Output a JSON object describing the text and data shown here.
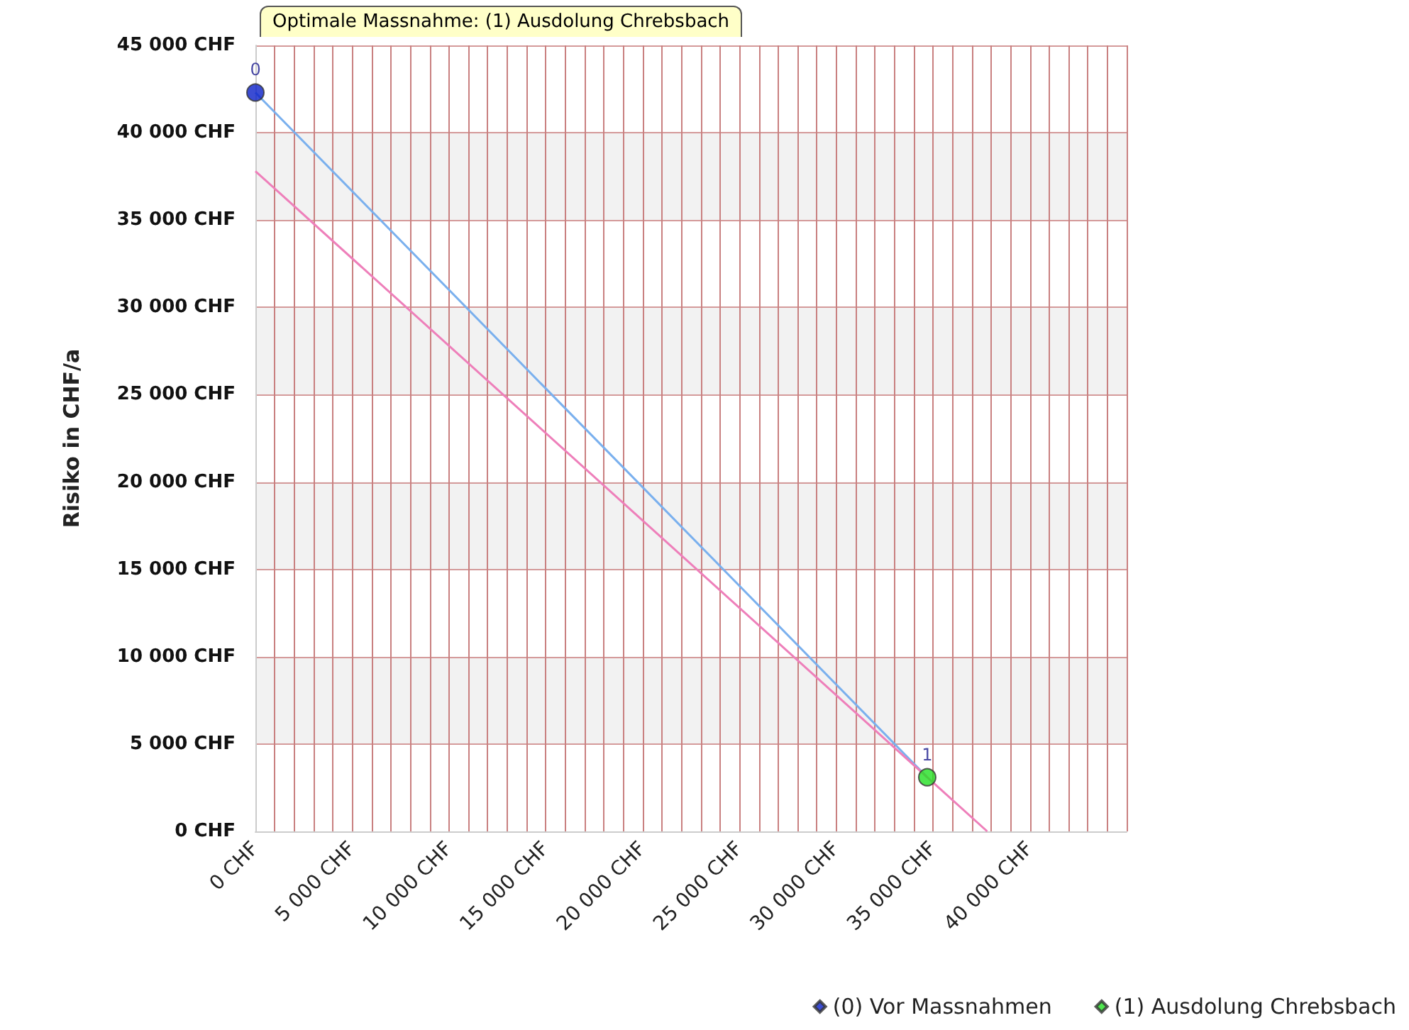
{
  "chart_data": {
    "type": "scatter",
    "ylabel": "Risiko in CHF/a",
    "annotations": [
      "Optimale Massnahme: (1) Ausdolung Chrebsbach",
      {
        "text": "0",
        "x": 0,
        "y": 42300
      },
      {
        "text": "1",
        "x": 34700,
        "y": 3100
      }
    ],
    "series": [
      {
        "type": "line",
        "color": "#7ab0ee",
        "x": [
          0,
          34700
        ],
        "values": [
          42300,
          3100
        ],
        "marker": "none"
      },
      {
        "type": "line",
        "color": "#ee7fba",
        "x": [
          0,
          37800
        ],
        "values": [
          37800,
          0
        ],
        "marker": "none"
      },
      {
        "name": "(0) Vor Massnahmen",
        "color": "#0a1fc8",
        "x": [
          0
        ],
        "values": [
          42300
        ]
      },
      {
        "name": "(1) Ausdolung Chrebsbach",
        "color": "#22e022",
        "x": [
          34700
        ],
        "values": [
          3100
        ]
      }
    ],
    "xlim": [
      0,
      45000
    ],
    "xticks": [
      {
        "value": 0,
        "label": "0 CHF"
      },
      {
        "value": 1000,
        "label": null
      },
      {
        "value": 2000,
        "label": null
      },
      {
        "value": 3000,
        "label": null
      },
      {
        "value": 4000,
        "label": null
      },
      {
        "value": 5000,
        "label": "5 000 CHF"
      },
      {
        "value": 6000,
        "label": null
      },
      {
        "value": 7000,
        "label": null
      },
      {
        "value": 8000,
        "label": null
      },
      {
        "value": 9000,
        "label": null
      },
      {
        "value": 10000,
        "label": "10 000 CHF"
      },
      {
        "value": 11000,
        "label": null
      },
      {
        "value": 12000,
        "label": null
      },
      {
        "value": 13000,
        "label": null
      },
      {
        "value": 14000,
        "label": null
      },
      {
        "value": 15000,
        "label": "15 000 CHF"
      },
      {
        "value": 16000,
        "label": null
      },
      {
        "value": 17000,
        "label": null
      },
      {
        "value": 18000,
        "label": null
      },
      {
        "value": 19000,
        "label": null
      },
      {
        "value": 20000,
        "label": "20 000 CHF"
      },
      {
        "value": 21000,
        "label": null
      },
      {
        "value": 22000,
        "label": null
      },
      {
        "value": 23000,
        "label": null
      },
      {
        "value": 24000,
        "label": null
      },
      {
        "value": 25000,
        "label": "25 000 CHF"
      },
      {
        "value": 26000,
        "label": null
      },
      {
        "value": 27000,
        "label": null
      },
      {
        "value": 28000,
        "label": null
      },
      {
        "value": 29000,
        "label": null
      },
      {
        "value": 30000,
        "label": "30 000 CHF"
      },
      {
        "value": 31000,
        "label": null
      },
      {
        "value": 32000,
        "label": null
      },
      {
        "value": 33000,
        "label": null
      },
      {
        "value": 34000,
        "label": null
      },
      {
        "value": 35000,
        "label": "35 000 CHF"
      },
      {
        "value": 36000,
        "label": null
      },
      {
        "value": 37000,
        "label": null
      },
      {
        "value": 38000,
        "label": null
      },
      {
        "value": 39000,
        "label": null
      },
      {
        "value": 40000,
        "label": "40 000 CHF"
      },
      {
        "value": 41000,
        "label": null
      },
      {
        "value": 42000,
        "label": null
      },
      {
        "value": 43000,
        "label": null
      },
      {
        "value": 44000,
        "label": null
      },
      {
        "value": 45000,
        "label": null
      }
    ],
    "ylim": [
      0,
      45000
    ],
    "yticks": [
      {
        "value": 0,
        "label": "0 CHF"
      },
      {
        "value": 5000,
        "label": "5 000 CHF"
      },
      {
        "value": 10000,
        "label": "10 000 CHF"
      },
      {
        "value": 15000,
        "label": "15 000 CHF"
      },
      {
        "value": 20000,
        "label": "20 000 CHF"
      },
      {
        "value": 25000,
        "label": "25 000 CHF"
      },
      {
        "value": 30000,
        "label": "30 000 CHF"
      },
      {
        "value": 35000,
        "label": "35 000 CHF"
      },
      {
        "value": 40000,
        "label": "40 000 CHF"
      },
      {
        "value": 45000,
        "label": "45 000 CHF"
      }
    ],
    "grid": true,
    "legend": "bottom right",
    "marker": "circle"
  }
}
